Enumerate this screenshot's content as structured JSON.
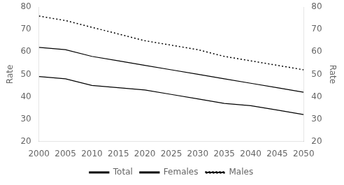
{
  "chart_data": {
    "type": "line",
    "x": [
      2000,
      2005,
      2010,
      2015,
      2020,
      2025,
      2030,
      2035,
      2040,
      2045,
      2050
    ],
    "series": [
      {
        "name": "Total",
        "color": "#000000",
        "line_style": "solid",
        "values": [
          62,
          61,
          58,
          56,
          54,
          52,
          50,
          48,
          46,
          44,
          42
        ]
      },
      {
        "name": "Females",
        "color": "#000000",
        "line_style": "solid",
        "values": [
          49,
          48,
          45,
          44,
          43,
          41,
          39,
          37,
          36,
          34,
          32
        ]
      },
      {
        "name": "Males",
        "color": "#000000",
        "line_style": "dotted",
        "values": [
          76,
          74,
          71,
          68,
          65,
          63,
          61,
          58,
          56,
          54,
          52
        ]
      }
    ],
    "ylabel": "Rate",
    "y2label": "Rate",
    "xlim": [
      2000,
      2050
    ],
    "xticks": [
      2000,
      2005,
      2010,
      2015,
      2020,
      2025,
      2030,
      2035,
      2040,
      2045,
      2050
    ],
    "ylim": [
      20,
      80
    ],
    "yticks": [
      20,
      30,
      40,
      50,
      60,
      70,
      80
    ],
    "y2lim": [
      20,
      80
    ],
    "y2ticks": [
      20,
      30,
      40,
      50,
      60,
      70,
      80
    ],
    "grid": false,
    "legend": "bottom"
  }
}
